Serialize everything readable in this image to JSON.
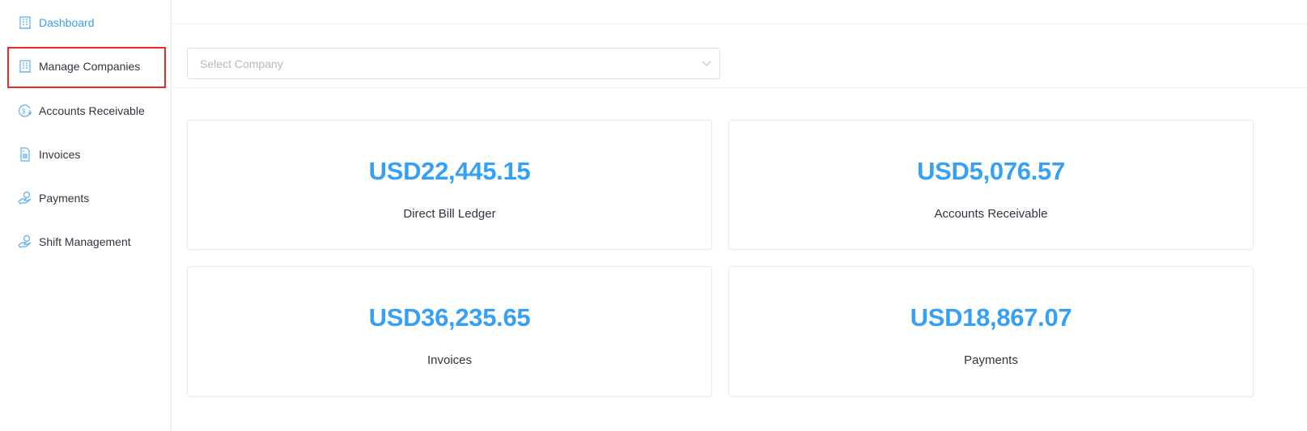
{
  "sidebar": {
    "items": [
      {
        "label": "Dashboard",
        "icon": "building-icon",
        "active": true
      },
      {
        "label": "Manage Companies",
        "icon": "building-icon",
        "highlighted": true
      },
      {
        "label": "Accounts Receivable",
        "icon": "dollar-circle-icon"
      },
      {
        "label": "Invoices",
        "icon": "invoice-document-icon"
      },
      {
        "label": "Payments",
        "icon": "hand-coin-icon"
      },
      {
        "label": "Shift Management",
        "icon": "hand-coin-icon"
      }
    ]
  },
  "company_select": {
    "placeholder": "Select Company"
  },
  "cards": [
    {
      "value": "USD22,445.15",
      "label": "Direct Bill Ledger"
    },
    {
      "value": "USD5,076.57",
      "label": "Accounts Receivable"
    },
    {
      "value": "USD36,235.65",
      "label": "Invoices"
    },
    {
      "value": "USD18,867.07",
      "label": "Payments"
    }
  ],
  "colors": {
    "accent": "#36a0f4",
    "highlight": "#ee2a24"
  }
}
